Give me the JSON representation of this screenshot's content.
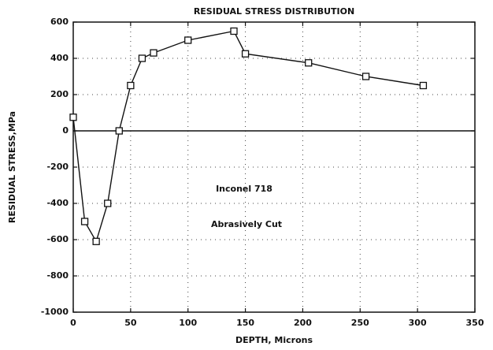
{
  "chart_data": {
    "type": "line",
    "title": "RESIDUAL STRESS DISTRIBUTION",
    "x_label": "DEPTH, Microns",
    "y_label": "RESIDUAL STRESS,MPa",
    "annotations": [
      "Inconel 718",
      "Abrasively Cut"
    ],
    "series": [
      {
        "name": "Inconel 718 Abrasively Cut",
        "color": "#111111",
        "x": [
          0,
          10,
          20,
          30,
          40,
          50,
          60,
          70,
          100,
          140,
          150,
          205,
          255,
          305
        ],
        "values": [
          75,
          -500,
          -610,
          -400,
          0,
          250,
          400,
          430,
          500,
          550,
          425,
          375,
          300,
          250
        ]
      }
    ],
    "xlim": [
      0,
      350
    ],
    "xticks": [
      0,
      50,
      100,
      150,
      200,
      250,
      300,
      350
    ],
    "ylim": [
      -1000,
      600
    ],
    "yticks": [
      -1000,
      -800,
      -600,
      -400,
      -200,
      0,
      200,
      400,
      600
    ],
    "grid": true,
    "marker": "square"
  }
}
